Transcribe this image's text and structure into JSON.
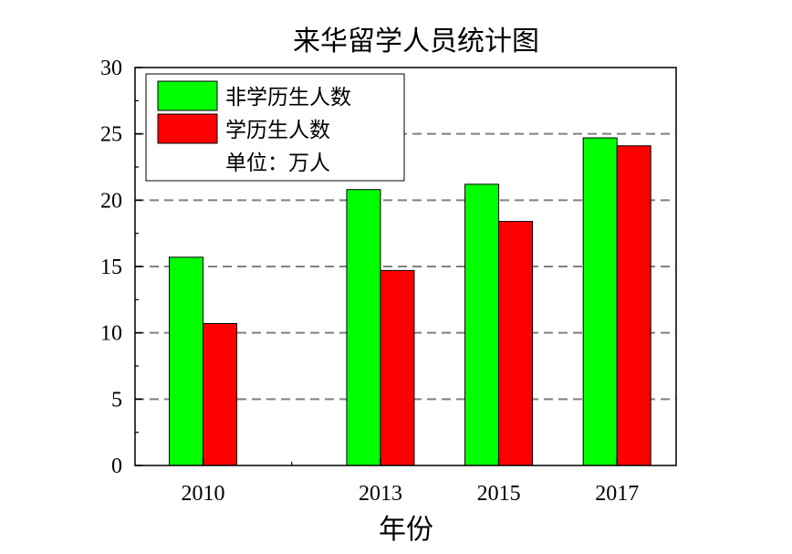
{
  "chart_data": {
    "type": "bar",
    "title": "来华留学人员统计图",
    "xlabel": "年份",
    "ylabel": "",
    "x": [
      2010,
      2013,
      2015,
      2017
    ],
    "xlim": [
      2008.85,
      2018
    ],
    "ylim": [
      0,
      30
    ],
    "yticks": [
      0,
      5,
      10,
      15,
      20,
      25,
      30
    ],
    "grid": {
      "y": true,
      "style": "dashed"
    },
    "legend_position": "top-left",
    "legend_note": "单位：万人",
    "series": [
      {
        "name": "非学历生人数",
        "color": "#00ff00",
        "values": [
          15.7,
          20.8,
          21.2,
          24.7
        ]
      },
      {
        "name": "学历生人数",
        "color": "#ff0000",
        "values": [
          10.7,
          14.7,
          18.4,
          24.1
        ]
      }
    ]
  }
}
